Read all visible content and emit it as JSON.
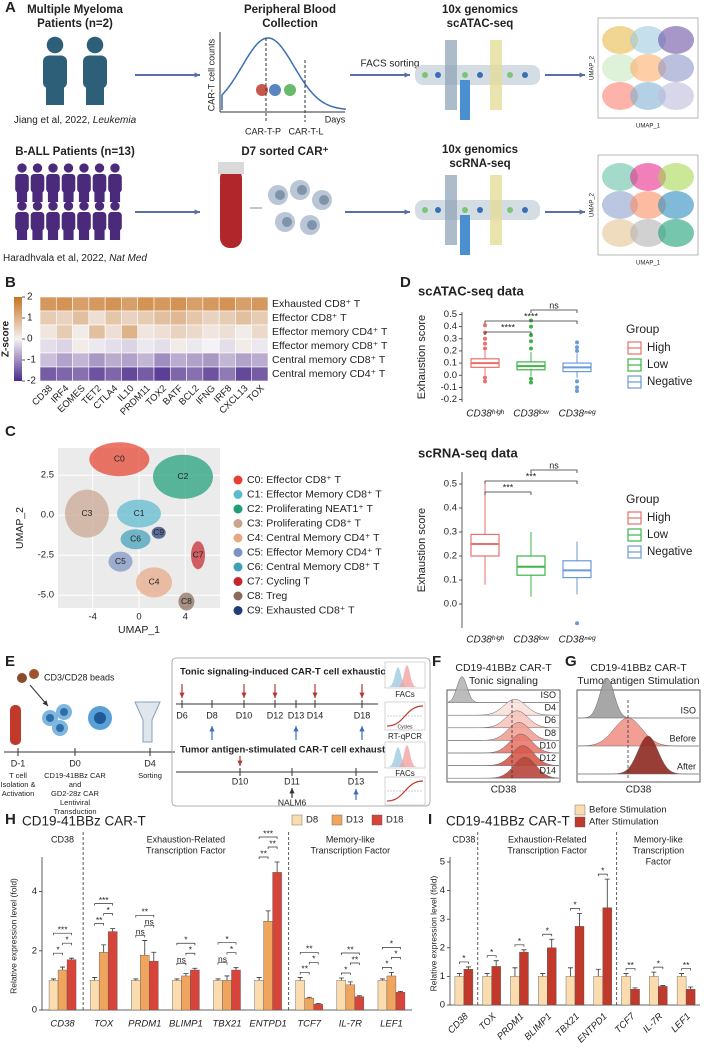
{
  "panel_labels": [
    "A",
    "B",
    "C",
    "D",
    "E",
    "F",
    "G",
    "H",
    "I"
  ],
  "panel_a": {
    "mm_title": "Multiple Myeloma",
    "mm_subtitle": "Patients (n=2)",
    "mm_ref": "Jiang et al, 2022, ",
    "mm_journal": "Leukemia",
    "blood_title": "Peripheral Blood",
    "blood_subtitle": "Collection",
    "y_axis": "CAR-T cell counts",
    "x_axis": "Days",
    "timepoints": [
      "CAR-T-P",
      "CAR-T-L"
    ],
    "sorting": "FACS sorting",
    "atac_title": "10x genomics",
    "atac_subtitle": "scATAC-seq",
    "thumb_axes": [
      "UMAP_1",
      "UMAP_2"
    ],
    "ball_title": "B-ALL Patients (n=13)",
    "ball_ref": "Haradhvala et al, 2022, ",
    "ball_journal": "Nat Med",
    "sorted": "D7 sorted CAR⁺",
    "rna_title": "10x genomics",
    "rna_subtitle": "scRNA-seq"
  },
  "chart_data": [
    {
      "type": "heatmap",
      "rows": [
        "Exhausted CD8⁺ T",
        "Effector CD8⁺ T",
        "Effector memory CD4⁺ T",
        "Effector memory CD8⁺ T",
        "Central memory CD8⁺ T",
        "Central memory CD4⁺ T"
      ],
      "columns": [
        "CD38",
        "IRF4",
        "EOMES",
        "TET2",
        "CTLA4",
        "IL10",
        "PRDM11",
        "TOX2",
        "BATF",
        "BCL2",
        "IFNG",
        "IRF8",
        "CXCL13",
        "TOX"
      ],
      "values": [
        [
          1.4,
          1.5,
          1.3,
          1.4,
          1.5,
          1.3,
          1.5,
          1.4,
          1.5,
          1.3,
          1.4,
          1.5,
          1.3,
          1.4
        ],
        [
          0.6,
          0.5,
          0.8,
          0.3,
          0.7,
          0.5,
          0.6,
          0.8,
          0.9,
          0.7,
          0.5,
          0.6,
          0.8,
          0.6
        ],
        [
          0.2,
          0.6,
          0.1,
          0.8,
          0.3,
          1.0,
          0.2,
          0.3,
          0.5,
          0.4,
          0.2,
          0.3,
          0.1,
          0.4
        ],
        [
          -0.2,
          -0.3,
          0.1,
          -0.1,
          -0.2,
          -0.3,
          -0.1,
          -0.2,
          0.1,
          -0.1,
          0.0,
          -0.2,
          0.1,
          -0.1
        ],
        [
          -0.5,
          -0.8,
          -0.6,
          -0.9,
          -0.7,
          -0.8,
          -0.6,
          -1.0,
          -0.7,
          -0.8,
          -0.9,
          -0.6,
          -0.8,
          -0.7
        ],
        [
          -1.5,
          -1.4,
          -1.3,
          -1.6,
          -1.4,
          -1.7,
          -1.5,
          -1.8,
          -1.4,
          -1.3,
          -1.6,
          -1.2,
          -1.7,
          -1.5
        ]
      ],
      "zlim": [
        -2,
        2
      ],
      "zticks": [
        2,
        1,
        0,
        -1,
        -2
      ],
      "colorbar_label": "Z-score",
      "colors": [
        "#4a2a8a",
        "#f4f2f4",
        "#c8731f"
      ]
    },
    {
      "type": "umap",
      "xlabel": "UMAP_1",
      "ylabel": "UMAP_2",
      "xlim": [
        -7,
        7
      ],
      "ylim": [
        -5.8,
        4.2
      ],
      "xticks": [
        -4,
        0,
        4
      ],
      "yticks": [
        {
          "value": -5,
          "label": "-5.0"
        },
        {
          "value": -2.5,
          "label": "-2.5"
        },
        {
          "value": 0,
          "label": "0.0"
        },
        {
          "value": 2.5,
          "label": "2.5"
        }
      ],
      "clusters": [
        {
          "label": "C0",
          "name": "C0: Effector CD8⁺ T",
          "color": "#e5412e",
          "center": [
            -1.7,
            3.5
          ]
        },
        {
          "label": "C1",
          "name": "C1: Effector Memory CD8⁺ T",
          "color": "#5bbad0",
          "center": [
            0,
            0.1
          ]
        },
        {
          "label": "C2",
          "name": "C2: Proliferating  NEAT1⁺ T",
          "color": "#1f9e78",
          "center": [
            3.8,
            2.4
          ]
        },
        {
          "label": "C3",
          "name": "C3: Proliferating CD8⁺ T",
          "color": "#c9a590",
          "center": [
            -4.5,
            0.1
          ]
        },
        {
          "label": "C4",
          "name": "C4: Central Memory CD4⁺ T",
          "color": "#e7a885",
          "center": [
            1.3,
            -4.2
          ]
        },
        {
          "label": "C5",
          "name": "C5: Effector Memory CD4⁺ T",
          "color": "#7b93c4",
          "center": [
            -1.6,
            -2.9
          ]
        },
        {
          "label": "C6",
          "name": "C6: Central Memory CD8⁺ T",
          "color": "#3f9fb8",
          "center": [
            -0.3,
            -1.5
          ]
        },
        {
          "label": "C7",
          "name": "C7: Cycling T",
          "color": "#c3262d",
          "center": [
            5.1,
            -2.5
          ]
        },
        {
          "label": "C8",
          "name": "C8: Treg",
          "color": "#8a6b5b",
          "center": [
            4.1,
            -5.4
          ]
        },
        {
          "label": "C9",
          "name": "C9: Exhausted CD8⁺ T",
          "color": "#223c78",
          "center": [
            1.7,
            -1.1
          ]
        }
      ]
    },
    {
      "type": "box",
      "title": "scATAC-seq data",
      "ylabel": "Exhaustion score",
      "categories": [
        "CD38ʰⁱᵍʰ",
        "CD38ˡᵒʷ",
        "CD38ⁿᵉᵍ"
      ],
      "legend_title": "Group",
      "boxes": [
        {
          "name": "High",
          "color": "#e8716b",
          "min": 0.0,
          "q1": 0.065,
          "median": 0.1,
          "q3": 0.135,
          "max": 0.2,
          "outliers": [
            0.22,
            0.26,
            0.3,
            0.35,
            0.41,
            -0.02,
            -0.05
          ]
        },
        {
          "name": "Low",
          "color": "#3fb34a",
          "min": -0.01,
          "q1": 0.045,
          "median": 0.075,
          "q3": 0.11,
          "max": 0.19,
          "outliers": [
            0.22,
            0.28,
            0.33,
            0.4,
            0.45,
            -0.03,
            -0.06
          ]
        },
        {
          "name": "Negative",
          "color": "#6b9bd6",
          "min": -0.02,
          "q1": 0.03,
          "median": 0.065,
          "q3": 0.1,
          "max": 0.18,
          "outliers": [
            0.2,
            0.23,
            0.27,
            -0.05,
            -0.1,
            -0.13
          ]
        }
      ],
      "comparisons": [
        {
          "pair": [
            0,
            1
          ],
          "label": "****"
        },
        {
          "pair": [
            0,
            2
          ],
          "label": "****"
        },
        {
          "pair": [
            1,
            2
          ],
          "label": "ns"
        }
      ],
      "ylim": [
        -0.22,
        0.52
      ],
      "yticks": [
        -0.2,
        -0.1,
        {
          "value": 0,
          "label": "0.0"
        },
        0.1,
        0.2,
        0.3,
        0.4,
        0.5
      ]
    },
    {
      "type": "box",
      "title": "scRNA-seq data",
      "ylabel": "Exhaustion score",
      "categories": [
        "CD38ʰⁱᵍʰ",
        "CD38ˡᵒʷ",
        "CD38ⁿᵉᵍ"
      ],
      "legend_title": "Group",
      "boxes": [
        {
          "name": "High",
          "color": "#e8716b",
          "min": 0.08,
          "q1": 0.2,
          "median": 0.25,
          "q3": 0.29,
          "max": 0.5,
          "outliers": []
        },
        {
          "name": "Low",
          "color": "#3fb34a",
          "min": 0.03,
          "q1": 0.12,
          "median": 0.155,
          "q3": 0.2,
          "max": 0.3,
          "outliers": []
        },
        {
          "name": "Negative",
          "color": "#6b9bd6",
          "min": 0.04,
          "q1": 0.11,
          "median": 0.14,
          "q3": 0.18,
          "max": 0.26,
          "outliers": [
            -0.08
          ]
        }
      ],
      "comparisons": [
        {
          "pair": [
            0,
            1
          ],
          "label": "***"
        },
        {
          "pair": [
            0,
            2
          ],
          "label": "***"
        },
        {
          "pair": [
            1,
            2
          ],
          "label": "ns"
        }
      ],
      "ylim": [
        -0.1,
        0.55
      ],
      "yticks": [
        {
          "value": 0,
          "label": "0.0"
        },
        0.1,
        0.2,
        0.3,
        0.4,
        0.5
      ]
    },
    {
      "type": "bar",
      "title": "CD19-41BBz CAR-T",
      "ylabel": "Relative expression level (fold)",
      "categories": [
        "CD38",
        "TOX",
        "PRDM1",
        "BLIMP1",
        "TBX21",
        "ENTPD1",
        "TCF7",
        "IL-7R",
        "LEF1"
      ],
      "series": [
        {
          "name": "D8",
          "color": "#fbdcae",
          "values": [
            1.0,
            1.0,
            1.0,
            1.0,
            1.0,
            1.0,
            1.0,
            1.0,
            1.0
          ],
          "errors": [
            0.05,
            0.1,
            0.05,
            0.05,
            0.05,
            0.1,
            0.1,
            0.08,
            0.05
          ]
        },
        {
          "name": "D13",
          "color": "#f0a55f",
          "values": [
            1.35,
            1.95,
            1.85,
            1.15,
            1.0,
            3.0,
            0.4,
            0.85,
            1.15
          ],
          "errors": [
            0.1,
            0.25,
            0.5,
            0.08,
            0.15,
            0.35,
            0.03,
            0.1,
            0.12
          ]
        },
        {
          "name": "D18",
          "color": "#d6443a",
          "values": [
            1.7,
            2.65,
            1.65,
            1.35,
            1.35,
            4.65,
            0.2,
            0.45,
            0.6
          ],
          "errors": [
            0.05,
            0.1,
            0.3,
            0.06,
            0.08,
            0.35,
            0.02,
            0.03,
            0.03
          ]
        }
      ],
      "significance": [
        [
          "*",
          "*",
          "***"
        ],
        [
          "**",
          "*",
          "***"
        ],
        [
          "ns",
          "ns",
          "**"
        ],
        [
          "ns",
          "*",
          "*"
        ],
        [
          "ns",
          "*",
          "*"
        ],
        [
          "**",
          "**",
          "***"
        ],
        [
          "**",
          "*",
          "**"
        ],
        [
          "*",
          "**",
          "**"
        ],
        [
          "*",
          "*",
          "*"
        ]
      ],
      "sections": [
        {
          "label": [
            "CD38"
          ],
          "span": [
            0,
            0
          ]
        },
        {
          "label": [
            "Exhaustion-Related",
            "Transcription Factor"
          ],
          "span": [
            1,
            5
          ]
        },
        {
          "label": [
            "Memory-like",
            "Transcription Factor"
          ],
          "span": [
            6,
            8
          ]
        }
      ],
      "ylim": [
        0,
        5
      ],
      "yticks": [
        0,
        2,
        4
      ]
    },
    {
      "type": "bar",
      "title": "CD19-41BBz CAR-T",
      "ylabel": "Relative expression level (fold)",
      "categories": [
        "CD38",
        "TOX",
        "PRDM1",
        "BLIMP1",
        "TBX21",
        "ENTPD1",
        "TCF7",
        "IL-7R",
        "LEF1"
      ],
      "series": [
        {
          "name": "Before Stimulation",
          "color": "#fbdcae",
          "values": [
            1.0,
            1.0,
            1.0,
            1.0,
            1.0,
            1.0,
            1.0,
            1.0,
            1.0
          ],
          "errors": [
            0.1,
            0.1,
            0.3,
            0.1,
            0.3,
            0.25,
            0.1,
            0.15,
            0.1
          ]
        },
        {
          "name": "After Stimulation",
          "color": "#c0392b",
          "values": [
            1.25,
            1.35,
            1.85,
            2.0,
            2.75,
            3.4,
            0.55,
            0.65,
            0.55
          ],
          "errors": [
            0.08,
            0.2,
            0.08,
            0.3,
            0.45,
            1.0,
            0.05,
            0.03,
            0.08
          ]
        }
      ],
      "significance": [
        [
          "*"
        ],
        [
          "*"
        ],
        [
          "*"
        ],
        [
          "*"
        ],
        [
          "*"
        ],
        [
          "*"
        ],
        [
          "**"
        ],
        [
          "*"
        ],
        [
          "**"
        ]
      ],
      "sections": [
        {
          "label": [
            "CD38"
          ],
          "span": [
            0,
            0
          ]
        },
        {
          "label": [
            "Exhaustion-Related",
            "Transcription Factor"
          ],
          "span": [
            1,
            5
          ]
        },
        {
          "label": [
            "Memory-like",
            "Transcription",
            "Factor"
          ],
          "span": [
            6,
            8
          ]
        }
      ],
      "ylim": [
        0,
        5
      ],
      "yticks": [
        0,
        1,
        2,
        3,
        4,
        5
      ]
    }
  ],
  "panel_e": {
    "beads": "CD3/CD28 beads",
    "days": [
      "D-1",
      "D0",
      "D4"
    ],
    "steps": [
      [
        "T cell",
        "Isolation &",
        "Activation"
      ],
      [
        "CD19-41BBz CAR",
        "and",
        "GD2-28z CAR",
        "Lentiviral",
        "Transduction"
      ],
      [
        "Sorting"
      ]
    ],
    "tonic_title": "Tonic signaling-induced CAR-T cell exhaustion",
    "tonic_days": [
      "D6",
      "D8",
      "D10",
      "D12",
      "D13",
      "D14",
      "D18"
    ],
    "tumor_title": "Tumor antigen-stimulated CAR-T cell exhaustion",
    "tumor_days": [
      "D10",
      "D11",
      "D13"
    ],
    "nalm6": "NALM6",
    "facs": "FACs",
    "qpcr": "RT-qPCR",
    "cycles": "Cycles"
  },
  "panel_f": {
    "title": "CD19-41BBz CAR-T",
    "subtitle": "Tonic signaling",
    "samples": [
      "ISO",
      "D4",
      "D6",
      "D8",
      "D10",
      "D12",
      "D14"
    ],
    "axis": "CD38"
  },
  "panel_g": {
    "title": "CD19-41BBz CAR-T",
    "subtitle": "Tumor antigen Stimulation",
    "samples": [
      "ISO",
      "Before",
      "After"
    ],
    "axis": "CD38"
  }
}
